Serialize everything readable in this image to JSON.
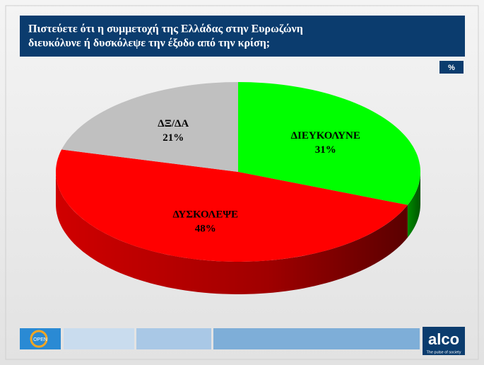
{
  "chart_data": {
    "type": "pie3d",
    "title": [
      "Πιστεύετε ότι η συμμετοχή της Ελλάδας στην Ευρωζώνη",
      "διευκόλυνε ή δυσκόλεψε την έξοδο από την κρίση;"
    ],
    "unit": "%",
    "categories": [
      "ΔΙΕΥΚΟΛΥΝΕ",
      "ΔΥΣΚΟΛΕΨΕ",
      "ΔΞ/ΔΑ"
    ],
    "values": [
      31,
      48,
      21
    ],
    "value_labels": [
      "31%",
      "48%",
      "21%"
    ],
    "colors": [
      "#00ff00",
      "#ff0000",
      "#c0c0c0"
    ]
  },
  "footer": {
    "channel_logo": "OPEN",
    "logo": "alco",
    "tagline": "The pulse of society"
  }
}
